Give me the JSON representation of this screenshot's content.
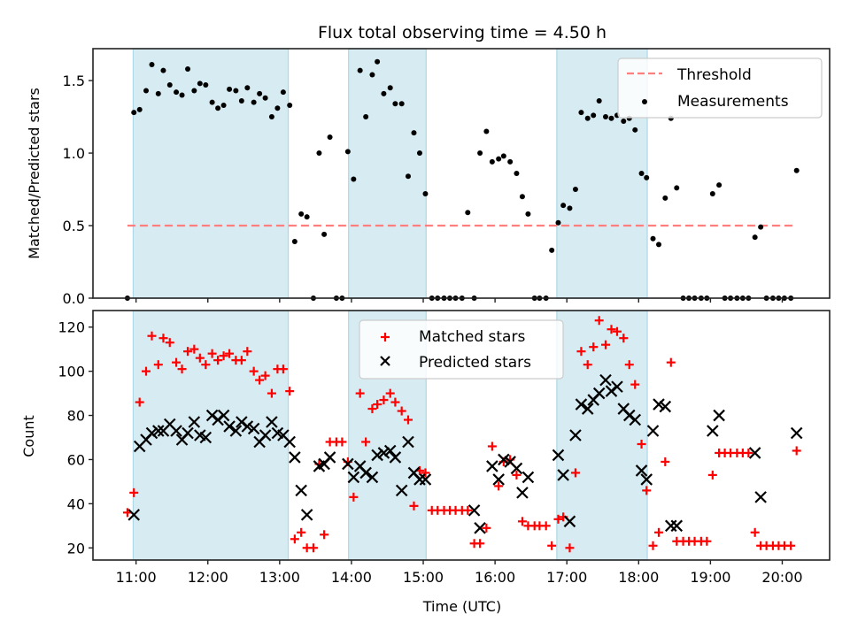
{
  "chart_data": [
    {
      "type": "scatter",
      "panel": "top",
      "title": "Flux total observing time = 4.50 h",
      "xlabel": "",
      "ylabel": "Matched/Predicted stars",
      "xlim": [
        10.4,
        20.66
      ],
      "ylim": [
        0,
        1.72
      ],
      "yticks": [
        0.0,
        0.5,
        1.0,
        1.5
      ],
      "ytick_labels": [
        "0.0",
        "0.5",
        "1.0",
        "1.5"
      ],
      "xticks": [
        11,
        12,
        13,
        14,
        15,
        16,
        17,
        18,
        19,
        20
      ],
      "grid": false,
      "legend_position": "top-right",
      "shaded_intervals": [
        [
          10.96,
          13.12
        ],
        [
          13.96,
          15.04
        ],
        [
          16.86,
          18.12
        ]
      ],
      "shade_color": "#add8e6",
      "threshold": {
        "name": "Threshold",
        "value": 0.5,
        "x_range": [
          10.88,
          20.2
        ],
        "color": "#ff7f7f",
        "style": "dashed"
      },
      "series": [
        {
          "name": "Measurements",
          "color": "#000000",
          "marker": "dot",
          "x": [
            10.88,
            10.97,
            11.05,
            11.14,
            11.22,
            11.31,
            11.38,
            11.47,
            11.56,
            11.64,
            11.72,
            11.81,
            11.89,
            11.97,
            12.06,
            12.14,
            12.22,
            12.3,
            12.39,
            12.47,
            12.55,
            12.64,
            12.72,
            12.8,
            12.89,
            12.97,
            13.05,
            13.14,
            13.21,
            13.3,
            13.38,
            13.47,
            13.55,
            13.62,
            13.7,
            13.79,
            13.87,
            13.95,
            14.03,
            14.12,
            14.2,
            14.29,
            14.36,
            14.45,
            14.54,
            14.61,
            14.7,
            14.79,
            14.87,
            14.95,
            15.03,
            15.12,
            15.2,
            15.29,
            15.37,
            15.45,
            15.54,
            15.62,
            15.71,
            15.79,
            15.88,
            15.96,
            16.05,
            16.12,
            16.21,
            16.3,
            16.38,
            16.46,
            16.55,
            16.62,
            16.71,
            16.79,
            16.88,
            16.95,
            17.04,
            17.12,
            17.2,
            17.29,
            17.37,
            17.45,
            17.54,
            17.62,
            17.7,
            17.79,
            17.87,
            17.95,
            18.04,
            18.11,
            18.2,
            18.28,
            18.37,
            18.45,
            18.53,
            18.62,
            18.7,
            18.78,
            18.87,
            18.95,
            19.03,
            19.12,
            19.2,
            19.28,
            19.37,
            19.45,
            19.53,
            19.62,
            19.7,
            19.78,
            19.87,
            19.95,
            20.03,
            20.12,
            20.2
          ],
          "y": [
            0.0,
            1.28,
            1.3,
            1.43,
            1.61,
            1.41,
            1.57,
            1.47,
            1.42,
            1.4,
            1.58,
            1.43,
            1.48,
            1.47,
            1.35,
            1.31,
            1.33,
            1.44,
            1.43,
            1.36,
            1.45,
            1.35,
            1.41,
            1.38,
            1.25,
            1.31,
            1.42,
            1.33,
            0.39,
            0.58,
            0.56,
            0.0,
            1.0,
            0.44,
            1.11,
            0.0,
            0.0,
            1.01,
            0.82,
            1.57,
            1.25,
            1.54,
            1.63,
            1.41,
            1.45,
            1.34,
            1.34,
            0.84,
            1.14,
            1.0,
            0.72,
            0.0,
            0.0,
            0.0,
            0.0,
            0.0,
            0.0,
            0.59,
            0.0,
            1.0,
            1.15,
            0.94,
            0.96,
            0.98,
            0.94,
            0.86,
            0.7,
            0.58,
            0.0,
            0.0,
            0.0,
            0.33,
            0.52,
            0.64,
            0.62,
            0.75,
            1.28,
            1.24,
            1.26,
            1.36,
            1.25,
            1.24,
            1.26,
            1.22,
            1.24,
            1.16,
            0.86,
            0.83,
            0.41,
            0.37,
            0.69,
            1.24,
            0.76,
            0.0,
            0.0,
            0.0,
            0.0,
            0.0,
            0.72,
            0.78,
            0.0,
            0.0,
            0.0,
            0.0,
            0.0,
            0.42,
            0.49,
            0.0,
            0.0,
            0.0,
            0.0,
            0.0,
            0.88
          ]
        }
      ]
    },
    {
      "type": "scatter",
      "panel": "bottom",
      "title": "",
      "xlabel": "Time (UTC)",
      "ylabel": "Count",
      "xlim": [
        10.4,
        20.66
      ],
      "ylim": [
        14.5,
        127.5
      ],
      "yticks": [
        20,
        40,
        60,
        80,
        100,
        120
      ],
      "ytick_labels": [
        "20",
        "40",
        "60",
        "80",
        "100",
        "120"
      ],
      "xticks": [
        11,
        12,
        13,
        14,
        15,
        16,
        17,
        18,
        19,
        20
      ],
      "xtick_labels": [
        "11:00",
        "12:00",
        "13:00",
        "14:00",
        "15:00",
        "16:00",
        "17:00",
        "18:00",
        "19:00",
        "20:00"
      ],
      "grid": false,
      "legend_position": "top-center",
      "shaded_intervals": [
        [
          10.96,
          13.12
        ],
        [
          13.96,
          15.04
        ],
        [
          16.86,
          18.12
        ]
      ],
      "shade_color": "#add8e6",
      "series": [
        {
          "name": "Matched stars",
          "color": "#ff0000",
          "marker": "plus",
          "x": [
            10.88,
            10.97,
            11.05,
            11.14,
            11.22,
            11.31,
            11.38,
            11.47,
            11.56,
            11.64,
            11.72,
            11.81,
            11.89,
            11.97,
            12.06,
            12.14,
            12.22,
            12.3,
            12.39,
            12.47,
            12.55,
            12.64,
            12.72,
            12.8,
            12.89,
            12.97,
            13.05,
            13.14,
            13.21,
            13.3,
            13.38,
            13.47,
            13.55,
            13.62,
            13.7,
            13.79,
            13.87,
            13.95,
            14.03,
            14.12,
            14.2,
            14.29,
            14.36,
            14.45,
            14.54,
            14.61,
            14.7,
            14.79,
            14.87,
            14.95,
            15.03,
            15.12,
            15.2,
            15.29,
            15.37,
            15.45,
            15.54,
            15.62,
            15.71,
            15.79,
            15.88,
            15.96,
            16.05,
            16.12,
            16.21,
            16.3,
            16.38,
            16.46,
            16.55,
            16.62,
            16.71,
            16.79,
            16.88,
            16.95,
            17.04,
            17.12,
            17.2,
            17.29,
            17.37,
            17.45,
            17.54,
            17.62,
            17.7,
            17.79,
            17.87,
            17.95,
            18.04,
            18.11,
            18.2,
            18.28,
            18.37,
            18.45,
            18.53,
            18.62,
            18.7,
            18.78,
            18.87,
            18.95,
            19.03,
            19.12,
            19.2,
            19.28,
            19.37,
            19.45,
            19.53,
            19.62,
            19.7,
            19.78,
            19.87,
            19.95,
            20.03,
            20.12,
            20.2
          ],
          "y": [
            36,
            45,
            86,
            100,
            116,
            103,
            115,
            113,
            104,
            101,
            109,
            110,
            106,
            103,
            108,
            105,
            107,
            108,
            105,
            105,
            109,
            100,
            96,
            98,
            90,
            101,
            101,
            91,
            24,
            27,
            20,
            20,
            58,
            26,
            68,
            68,
            68,
            59,
            43,
            90,
            68,
            83,
            85,
            87,
            90,
            86,
            82,
            78,
            39,
            55,
            54,
            37,
            37,
            37,
            37,
            37,
            37,
            37,
            22,
            22,
            29,
            66,
            48,
            59,
            60,
            53,
            32,
            30,
            30,
            30,
            30,
            21,
            33,
            34,
            20,
            54,
            109,
            103,
            111,
            123,
            112,
            119,
            118,
            115,
            103,
            94,
            67,
            46,
            21,
            27,
            59,
            104,
            23,
            23,
            23,
            23,
            23,
            23,
            53,
            63,
            63,
            63,
            63,
            63,
            63,
            27,
            21,
            21,
            21,
            21,
            21,
            21,
            64
          ]
        },
        {
          "name": "Predicted stars",
          "color": "#000000",
          "marker": "x",
          "x": [
            10.97,
            11.05,
            11.14,
            11.22,
            11.31,
            11.38,
            11.47,
            11.56,
            11.64,
            11.72,
            11.81,
            11.89,
            11.97,
            12.06,
            12.14,
            12.22,
            12.3,
            12.39,
            12.47,
            12.55,
            12.64,
            12.72,
            12.8,
            12.89,
            12.97,
            13.05,
            13.14,
            13.21,
            13.3,
            13.38,
            13.55,
            13.62,
            13.7,
            13.95,
            14.03,
            14.12,
            14.2,
            14.29,
            14.36,
            14.45,
            14.54,
            14.61,
            14.7,
            14.79,
            14.87,
            14.95,
            15.03,
            15.71,
            15.79,
            15.96,
            16.05,
            16.12,
            16.21,
            16.3,
            16.38,
            16.46,
            16.88,
            16.95,
            17.04,
            17.12,
            17.2,
            17.29,
            17.37,
            17.45,
            17.54,
            17.62,
            17.7,
            17.79,
            17.87,
            17.95,
            18.04,
            18.11,
            18.2,
            18.28,
            18.37,
            18.45,
            18.53,
            19.03,
            19.12,
            19.62,
            19.7,
            20.2
          ],
          "y": [
            35,
            66,
            69,
            72,
            73,
            73,
            76,
            73,
            69,
            72,
            77,
            71,
            70,
            80,
            78,
            80,
            75,
            73,
            77,
            75,
            74,
            68,
            71,
            77,
            72,
            71,
            68,
            61,
            46,
            35,
            57,
            58,
            61,
            58,
            52,
            57,
            54,
            52,
            62,
            63,
            64,
            61,
            46,
            68,
            54,
            51,
            51,
            37,
            29,
            57,
            51,
            60,
            59,
            56,
            45,
            52,
            62,
            53,
            32,
            71,
            85,
            83,
            87,
            90,
            96,
            91,
            93,
            83,
            80,
            78,
            55,
            51,
            73,
            85,
            84,
            30,
            30,
            73,
            80,
            63,
            43,
            72
          ]
        }
      ]
    }
  ],
  "legend_top": {
    "items": [
      "Threshold",
      "Measurements"
    ]
  },
  "legend_bottom": {
    "items": [
      "Matched stars",
      "Predicted stars"
    ]
  }
}
